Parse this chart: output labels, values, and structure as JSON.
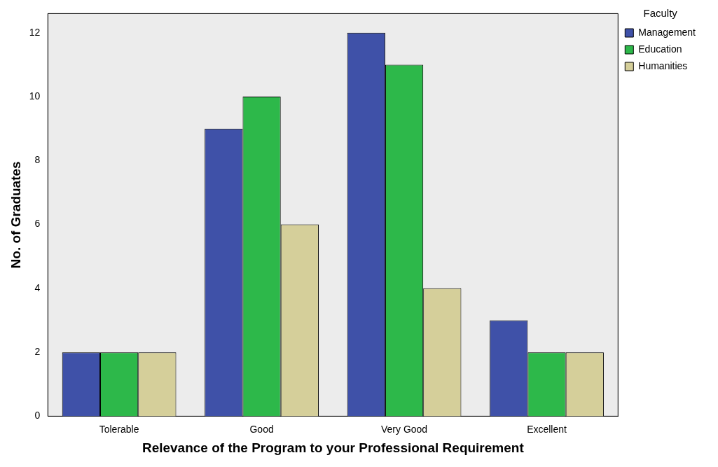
{
  "chart_data": {
    "type": "bar",
    "xlabel": "Relevance of the Program to your Professional Requirement",
    "ylabel": "No. of Graduates",
    "legend_title": "Faculty",
    "legend": "top right",
    "grid": false,
    "categories": [
      "Tolerable",
      "Good",
      "Very Good",
      "Excellent"
    ],
    "series": [
      {
        "name": "Management",
        "color": "#3f51a8",
        "values": [
          2,
          9,
          12,
          3
        ]
      },
      {
        "name": "Education",
        "color": "#2db84a",
        "values": [
          2,
          10,
          11,
          2
        ]
      },
      {
        "name": "Humanities",
        "color": "#d5cf9a",
        "values": [
          2,
          6,
          4,
          2
        ]
      }
    ],
    "ylim": [
      0,
      12.6
    ],
    "yticks": [
      0,
      2,
      4,
      6,
      8,
      10,
      12
    ]
  }
}
